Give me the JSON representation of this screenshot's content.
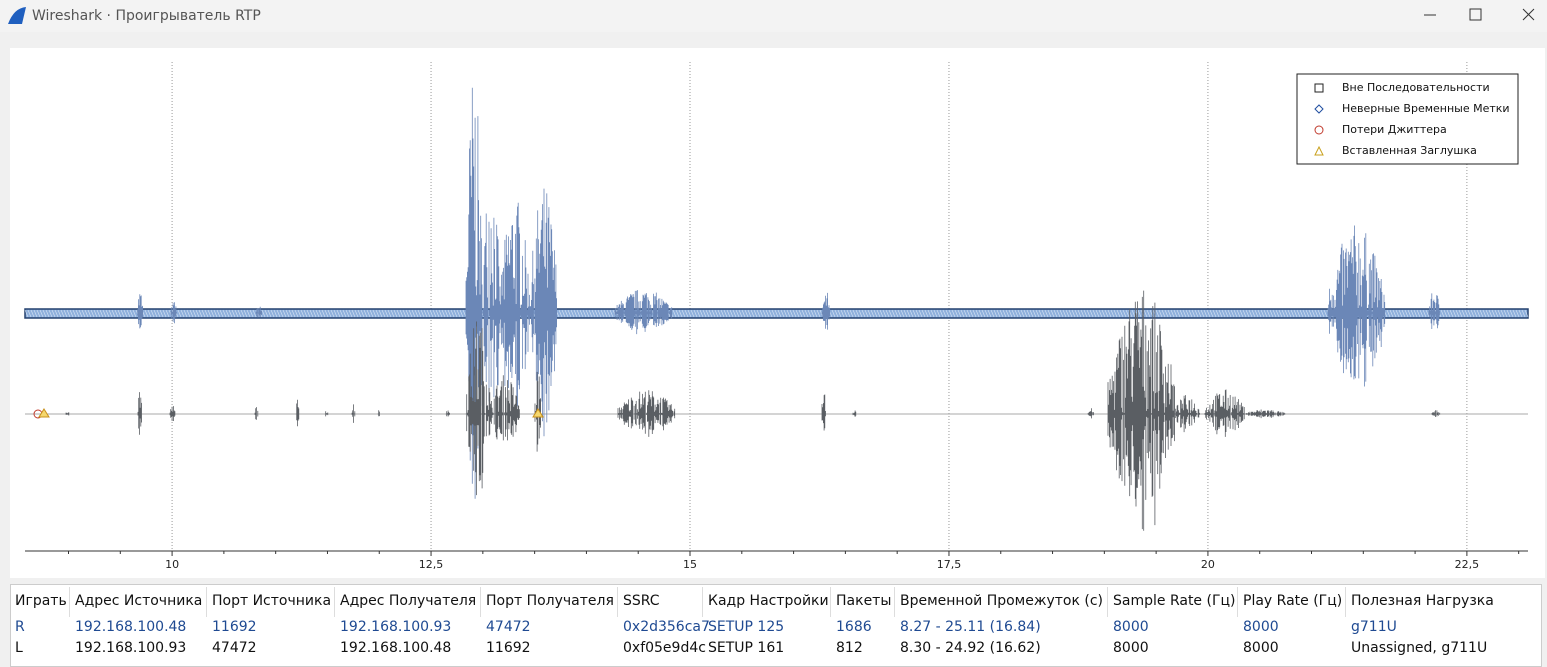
{
  "window": {
    "title": "Wireshark · Проигрыватель RTP"
  },
  "plot": {
    "xlim": [
      8.58,
      23.09
    ],
    "xticks": [
      10,
      {
        "value": 12.5,
        "label": "12,5"
      },
      15,
      {
        "value": 17.5,
        "label": "17,5"
      },
      20,
      {
        "value": 22.5,
        "label": "22,5"
      }
    ],
    "xminorticks": [
      9,
      9.5,
      10.5,
      11,
      11.5,
      12,
      13,
      13.5,
      14,
      14.5,
      15.5,
      16,
      16.5,
      17,
      18,
      18.5,
      19,
      19.5,
      20.5,
      21,
      21.5,
      22,
      23
    ],
    "grid": true
  },
  "legend": [
    "Вне Последовательности",
    "Неверные Временные Метки",
    "Потери Джиттера",
    "Вставленная Заглушка"
  ],
  "table": {
    "columns": [
      "Играть",
      "Адрес Источника",
      "Порт Источника",
      "Адрес Получателя",
      "Порт Получателя",
      "SSRC",
      "Кадр Настройки",
      "Пакеты",
      "Временной Промежуток (с)",
      "Sample Rate (Гц)",
      "Play Rate (Гц)",
      "Полезная Нагрузка"
    ],
    "rows": [
      [
        "R",
        "192.168.100.48",
        "11692",
        "192.168.100.93",
        "47472",
        "0x2d356ca7",
        "SETUP 125",
        "1686",
        "8.27 - 25.11 (16.84)",
        "8000",
        "8000",
        "g711U"
      ],
      [
        "L",
        "192.168.100.93",
        "47472",
        "192.168.100.48",
        "11692",
        "0xf05e9d4c",
        "SETUP 161",
        "812",
        "8.30 - 24.92 (16.62)",
        "8000",
        "8000",
        "Unassigned, g711U"
      ]
    ]
  }
}
